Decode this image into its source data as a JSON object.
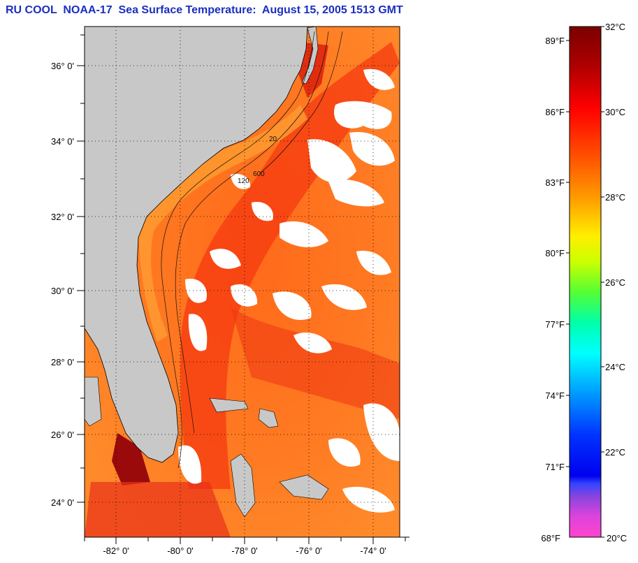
{
  "title": "RU COOL  NOAA-17  Sea Surface Temperature:  August 15, 2005 1513 GMT",
  "map": {
    "lat_labels": [
      "36° 0'",
      "34° 0'",
      "32° 0'",
      "30° 0'",
      "28° 0'",
      "26° 0'",
      "24° 0'"
    ],
    "lon_labels": [
      "-82° 0'",
      "-80° 0'",
      "-78° 0'",
      "-76° 0'",
      "-74° 0'"
    ],
    "land_color": "#c8c8c8",
    "cloud_color": "#ffffff",
    "contour_labels": [
      "20",
      "600",
      "120"
    ]
  },
  "colorbar": {
    "f_labels": [
      "89°F",
      "86°F",
      "83°F",
      "80°F",
      "77°F",
      "74°F",
      "71°F",
      "68°F"
    ],
    "c_labels": [
      "32°C",
      "30°C",
      "28°C",
      "26°C",
      "24°C",
      "22°C",
      "20°C"
    ]
  }
}
